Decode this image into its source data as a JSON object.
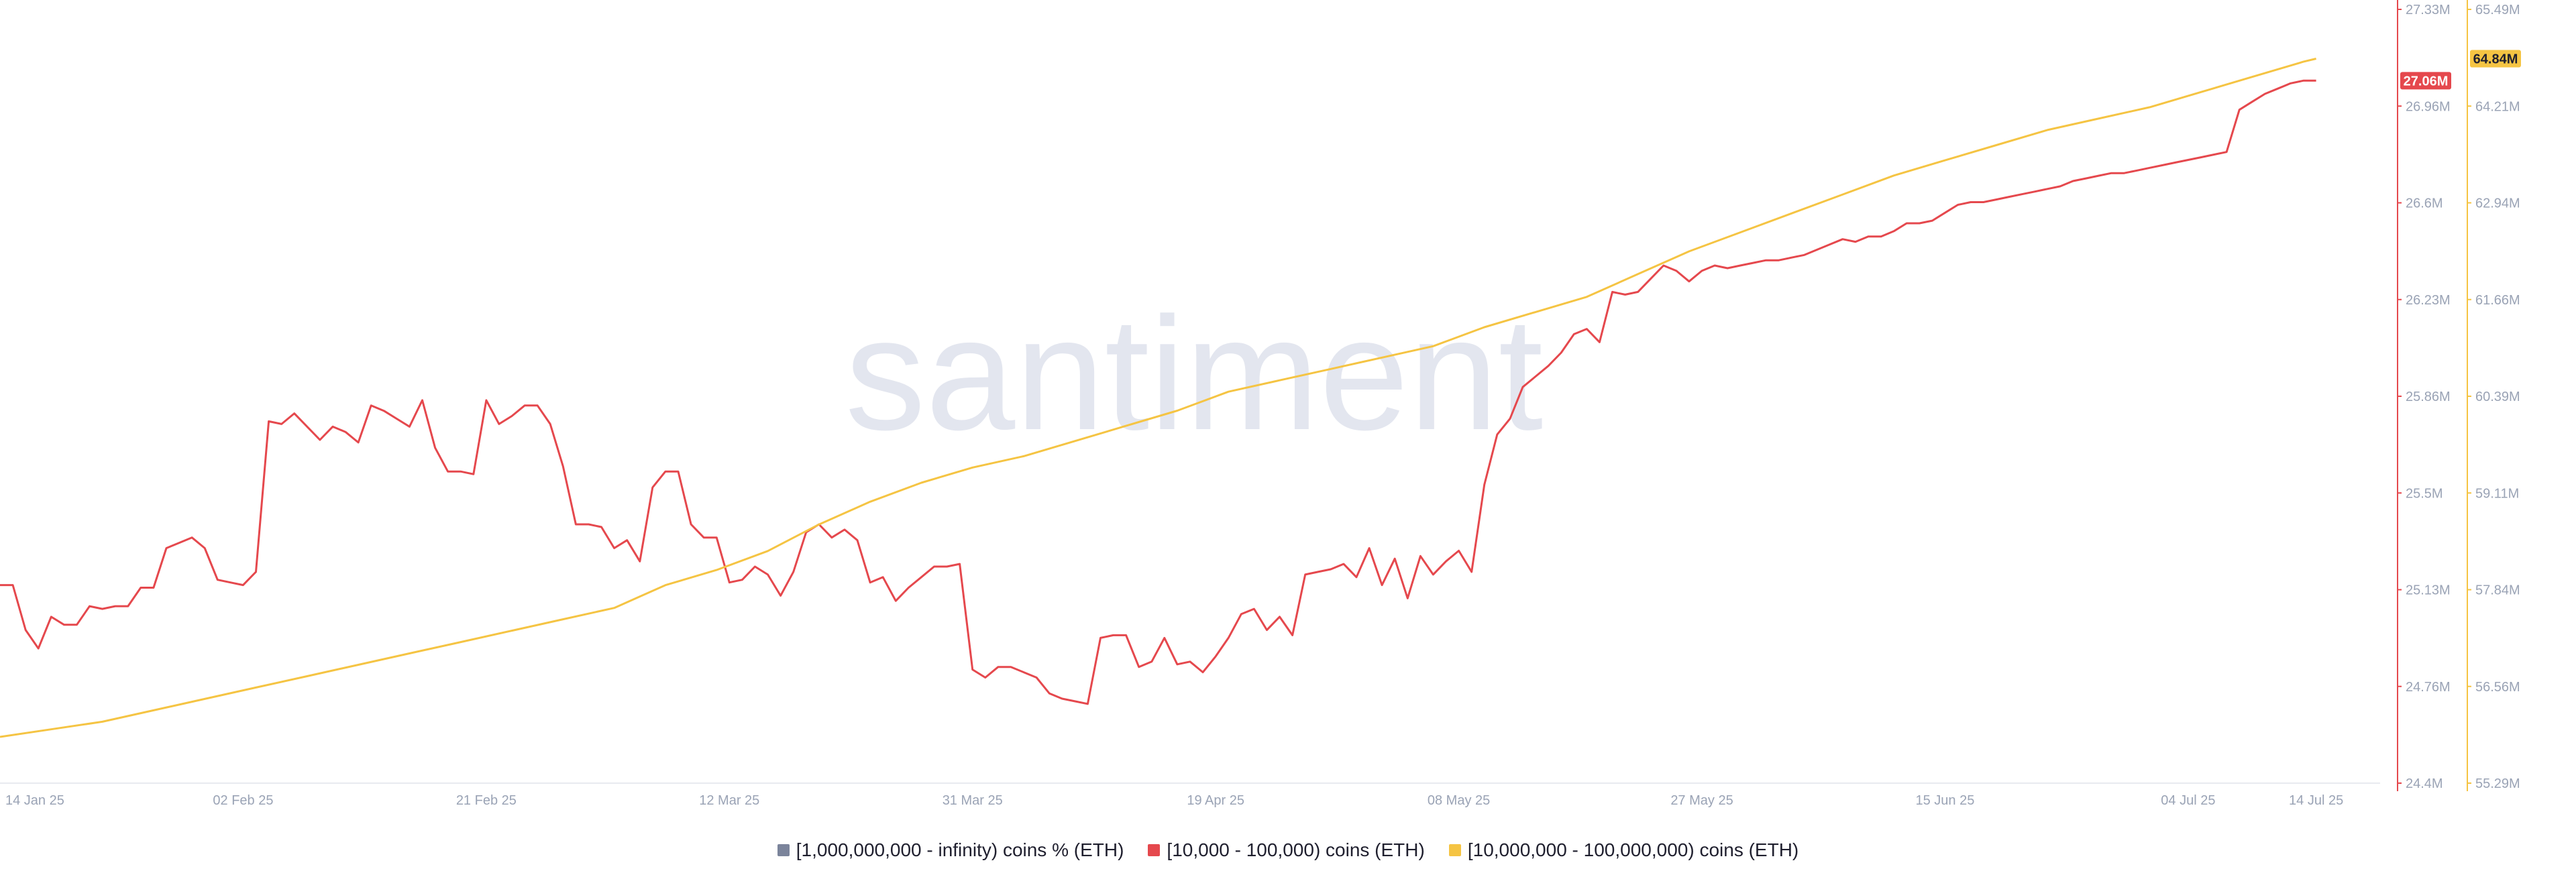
{
  "watermark": "santiment",
  "colors": {
    "red": "#e5484d",
    "yellow": "#f5c443",
    "gray": "#7b849b",
    "axis_text": "#9aa3b5",
    "watermark": "#e3e6ef"
  },
  "legend": [
    {
      "label": "[1,000,000,000 - infinity) coins % (ETH)",
      "color": "#7b849b"
    },
    {
      "label": "[10,000 - 100,000) coins (ETH)",
      "color": "#e5484d"
    },
    {
      "label": "[10,000,000 - 100,000,000) coins (ETH)",
      "color": "#f5c443"
    }
  ],
  "chart_data": {
    "type": "line",
    "title": "",
    "xlabel": "",
    "x_range": [
      "2025-01-14",
      "2025-07-19"
    ],
    "x_ticks": [
      {
        "date": "2025-01-14",
        "label": "14 Jan 25"
      },
      {
        "date": "2025-02-02",
        "label": "02 Feb 25"
      },
      {
        "date": "2025-02-21",
        "label": "21 Feb 25"
      },
      {
        "date": "2025-03-12",
        "label": "12 Mar 25"
      },
      {
        "date": "2025-03-31",
        "label": "31 Mar 25"
      },
      {
        "date": "2025-04-19",
        "label": "19 Apr 25"
      },
      {
        "date": "2025-05-08",
        "label": "08 May 25"
      },
      {
        "date": "2025-05-27",
        "label": "27 May 25"
      },
      {
        "date": "2025-06-15",
        "label": "15 Jun 25"
      },
      {
        "date": "2025-07-04",
        "label": "04 Jul 25"
      },
      {
        "date": "2025-07-14",
        "label": "14 Jul 25"
      }
    ],
    "axes": [
      {
        "id": "red",
        "range": [
          24.4,
          27.33
        ],
        "unit": "M",
        "tick_labels": [
          "27.33M",
          "26.96M",
          "26.6M",
          "26.23M",
          "25.86M",
          "25.5M",
          "25.13M",
          "24.76M",
          "24.4M"
        ],
        "current_label": "27.06M"
      },
      {
        "id": "yellow",
        "range": [
          55.29,
          65.49
        ],
        "unit": "M",
        "tick_labels": [
          "65.49M",
          "64.21M",
          "62.94M",
          "61.66M",
          "60.39M",
          "59.11M",
          "57.84M",
          "56.56M",
          "55.29M"
        ],
        "current_label": "64.84M"
      }
    ],
    "series": [
      {
        "name": "[10,000 - 100,000) coins (ETH)",
        "axis": "red",
        "color": "#e5484d",
        "points": [
          [
            "2025-01-14",
            25.15
          ],
          [
            "2025-01-15",
            25.15
          ],
          [
            "2025-01-16",
            24.98
          ],
          [
            "2025-01-17",
            24.91
          ],
          [
            "2025-01-18",
            25.03
          ],
          [
            "2025-01-19",
            25.0
          ],
          [
            "2025-01-20",
            25.0
          ],
          [
            "2025-01-21",
            25.07
          ],
          [
            "2025-01-22",
            25.06
          ],
          [
            "2025-01-23",
            25.07
          ],
          [
            "2025-01-24",
            25.07
          ],
          [
            "2025-01-25",
            25.14
          ],
          [
            "2025-01-26",
            25.14
          ],
          [
            "2025-01-27",
            25.29
          ],
          [
            "2025-01-28",
            25.31
          ],
          [
            "2025-01-29",
            25.33
          ],
          [
            "2025-01-30",
            25.29
          ],
          [
            "2025-01-31",
            25.17
          ],
          [
            "2025-02-01",
            25.16
          ],
          [
            "2025-02-02",
            25.15
          ],
          [
            "2025-02-03",
            25.2
          ],
          [
            "2025-02-04",
            25.77
          ],
          [
            "2025-02-05",
            25.76
          ],
          [
            "2025-02-06",
            25.8
          ],
          [
            "2025-02-07",
            25.75
          ],
          [
            "2025-02-08",
            25.7
          ],
          [
            "2025-02-09",
            25.75
          ],
          [
            "2025-02-10",
            25.73
          ],
          [
            "2025-02-11",
            25.69
          ],
          [
            "2025-02-12",
            25.83
          ],
          [
            "2025-02-13",
            25.81
          ],
          [
            "2025-02-14",
            25.78
          ],
          [
            "2025-02-15",
            25.75
          ],
          [
            "2025-02-16",
            25.85
          ],
          [
            "2025-02-17",
            25.67
          ],
          [
            "2025-02-18",
            25.58
          ],
          [
            "2025-02-19",
            25.58
          ],
          [
            "2025-02-20",
            25.57
          ],
          [
            "2025-02-21",
            25.85
          ],
          [
            "2025-02-22",
            25.76
          ],
          [
            "2025-02-23",
            25.79
          ],
          [
            "2025-02-24",
            25.83
          ],
          [
            "2025-02-25",
            25.83
          ],
          [
            "2025-02-26",
            25.76
          ],
          [
            "2025-02-27",
            25.6
          ],
          [
            "2025-02-28",
            25.38
          ],
          [
            "2025-03-01",
            25.38
          ],
          [
            "2025-03-02",
            25.37
          ],
          [
            "2025-03-03",
            25.29
          ],
          [
            "2025-03-04",
            25.32
          ],
          [
            "2025-03-05",
            25.24
          ],
          [
            "2025-03-06",
            25.52
          ],
          [
            "2025-03-07",
            25.58
          ],
          [
            "2025-03-08",
            25.58
          ],
          [
            "2025-03-09",
            25.38
          ],
          [
            "2025-03-10",
            25.33
          ],
          [
            "2025-03-11",
            25.33
          ],
          [
            "2025-03-12",
            25.16
          ],
          [
            "2025-03-13",
            25.17
          ],
          [
            "2025-03-14",
            25.22
          ],
          [
            "2025-03-15",
            25.19
          ],
          [
            "2025-03-16",
            25.11
          ],
          [
            "2025-03-17",
            25.2
          ],
          [
            "2025-03-18",
            25.35
          ],
          [
            "2025-03-19",
            25.38
          ],
          [
            "2025-03-20",
            25.33
          ],
          [
            "2025-03-21",
            25.36
          ],
          [
            "2025-03-22",
            25.32
          ],
          [
            "2025-03-23",
            25.16
          ],
          [
            "2025-03-24",
            25.18
          ],
          [
            "2025-03-25",
            25.09
          ],
          [
            "2025-03-26",
            25.14
          ],
          [
            "2025-03-27",
            25.18
          ],
          [
            "2025-03-28",
            25.22
          ],
          [
            "2025-03-29",
            25.22
          ],
          [
            "2025-03-30",
            25.23
          ],
          [
            "2025-03-31",
            24.83
          ],
          [
            "2025-04-01",
            24.8
          ],
          [
            "2025-04-02",
            24.84
          ],
          [
            "2025-04-03",
            24.84
          ],
          [
            "2025-04-04",
            24.82
          ],
          [
            "2025-04-05",
            24.8
          ],
          [
            "2025-04-06",
            24.74
          ],
          [
            "2025-04-07",
            24.72
          ],
          [
            "2025-04-08",
            24.71
          ],
          [
            "2025-04-09",
            24.7
          ],
          [
            "2025-04-10",
            24.95
          ],
          [
            "2025-04-11",
            24.96
          ],
          [
            "2025-04-12",
            24.96
          ],
          [
            "2025-04-13",
            24.84
          ],
          [
            "2025-04-14",
            24.86
          ],
          [
            "2025-04-15",
            24.95
          ],
          [
            "2025-04-16",
            24.85
          ],
          [
            "2025-04-17",
            24.86
          ],
          [
            "2025-04-18",
            24.82
          ],
          [
            "2025-04-19",
            24.88
          ],
          [
            "2025-04-20",
            24.95
          ],
          [
            "2025-04-21",
            25.04
          ],
          [
            "2025-04-22",
            25.06
          ],
          [
            "2025-04-23",
            24.98
          ],
          [
            "2025-04-24",
            25.03
          ],
          [
            "2025-04-25",
            24.96
          ],
          [
            "2025-04-26",
            25.19
          ],
          [
            "2025-04-27",
            25.2
          ],
          [
            "2025-04-28",
            25.21
          ],
          [
            "2025-04-29",
            25.23
          ],
          [
            "2025-04-30",
            25.18
          ],
          [
            "2025-05-01",
            25.29
          ],
          [
            "2025-05-02",
            25.15
          ],
          [
            "2025-05-03",
            25.25
          ],
          [
            "2025-05-04",
            25.1
          ],
          [
            "2025-05-05",
            25.26
          ],
          [
            "2025-05-06",
            25.19
          ],
          [
            "2025-05-07",
            25.24
          ],
          [
            "2025-05-08",
            25.28
          ],
          [
            "2025-05-09",
            25.2
          ],
          [
            "2025-05-10",
            25.53
          ],
          [
            "2025-05-11",
            25.72
          ],
          [
            "2025-05-12",
            25.78
          ],
          [
            "2025-05-13",
            25.9
          ],
          [
            "2025-05-14",
            25.94
          ],
          [
            "2025-05-15",
            25.98
          ],
          [
            "2025-05-16",
            26.03
          ],
          [
            "2025-05-17",
            26.1
          ],
          [
            "2025-05-18",
            26.12
          ],
          [
            "2025-05-19",
            26.07
          ],
          [
            "2025-05-20",
            26.26
          ],
          [
            "2025-05-21",
            26.25
          ],
          [
            "2025-05-22",
            26.26
          ],
          [
            "2025-05-23",
            26.31
          ],
          [
            "2025-05-24",
            26.36
          ],
          [
            "2025-05-25",
            26.34
          ],
          [
            "2025-05-26",
            26.3
          ],
          [
            "2025-05-27",
            26.34
          ],
          [
            "2025-05-28",
            26.36
          ],
          [
            "2025-05-29",
            26.35
          ],
          [
            "2025-05-30",
            26.36
          ],
          [
            "2025-05-31",
            26.37
          ],
          [
            "2025-06-01",
            26.38
          ],
          [
            "2025-06-02",
            26.38
          ],
          [
            "2025-06-03",
            26.39
          ],
          [
            "2025-06-04",
            26.4
          ],
          [
            "2025-06-05",
            26.42
          ],
          [
            "2025-06-06",
            26.44
          ],
          [
            "2025-06-07",
            26.46
          ],
          [
            "2025-06-08",
            26.45
          ],
          [
            "2025-06-09",
            26.47
          ],
          [
            "2025-06-10",
            26.47
          ],
          [
            "2025-06-11",
            26.49
          ],
          [
            "2025-06-12",
            26.52
          ],
          [
            "2025-06-13",
            26.52
          ],
          [
            "2025-06-14",
            26.53
          ],
          [
            "2025-06-15",
            26.56
          ],
          [
            "2025-06-16",
            26.59
          ],
          [
            "2025-06-17",
            26.6
          ],
          [
            "2025-06-18",
            26.6
          ],
          [
            "2025-06-19",
            26.61
          ],
          [
            "2025-06-20",
            26.62
          ],
          [
            "2025-06-21",
            26.63
          ],
          [
            "2025-06-22",
            26.64
          ],
          [
            "2025-06-23",
            26.65
          ],
          [
            "2025-06-24",
            26.66
          ],
          [
            "2025-06-25",
            26.68
          ],
          [
            "2025-06-26",
            26.69
          ],
          [
            "2025-06-27",
            26.7
          ],
          [
            "2025-06-28",
            26.71
          ],
          [
            "2025-06-29",
            26.71
          ],
          [
            "2025-06-30",
            26.72
          ],
          [
            "2025-07-01",
            26.73
          ],
          [
            "2025-07-02",
            26.74
          ],
          [
            "2025-07-03",
            26.75
          ],
          [
            "2025-07-04",
            26.76
          ],
          [
            "2025-07-05",
            26.77
          ],
          [
            "2025-07-06",
            26.78
          ],
          [
            "2025-07-07",
            26.79
          ],
          [
            "2025-07-08",
            26.95
          ],
          [
            "2025-07-09",
            26.98
          ],
          [
            "2025-07-10",
            27.01
          ],
          [
            "2025-07-11",
            27.03
          ],
          [
            "2025-07-12",
            27.05
          ],
          [
            "2025-07-13",
            27.06
          ],
          [
            "2025-07-14",
            27.06
          ]
        ]
      },
      {
        "name": "[10,000,000 - 100,000,000) coins (ETH)",
        "axis": "yellow",
        "color": "#f5c443",
        "points": [
          [
            "2025-01-14",
            55.9
          ],
          [
            "2025-01-18",
            56.0
          ],
          [
            "2025-01-22",
            56.1
          ],
          [
            "2025-01-26",
            56.25
          ],
          [
            "2025-01-30",
            56.4
          ],
          [
            "2025-02-03",
            56.55
          ],
          [
            "2025-02-07",
            56.7
          ],
          [
            "2025-02-11",
            56.85
          ],
          [
            "2025-02-15",
            57.0
          ],
          [
            "2025-02-19",
            57.15
          ],
          [
            "2025-02-23",
            57.3
          ],
          [
            "2025-02-27",
            57.45
          ],
          [
            "2025-03-03",
            57.6
          ],
          [
            "2025-03-07",
            57.9
          ],
          [
            "2025-03-11",
            58.1
          ],
          [
            "2025-03-15",
            58.35
          ],
          [
            "2025-03-19",
            58.7
          ],
          [
            "2025-03-23",
            59.0
          ],
          [
            "2025-03-27",
            59.25
          ],
          [
            "2025-03-31",
            59.45
          ],
          [
            "2025-04-04",
            59.6
          ],
          [
            "2025-04-08",
            59.8
          ],
          [
            "2025-04-12",
            60.0
          ],
          [
            "2025-04-16",
            60.2
          ],
          [
            "2025-04-20",
            60.45
          ],
          [
            "2025-04-24",
            60.6
          ],
          [
            "2025-04-28",
            60.75
          ],
          [
            "2025-05-02",
            60.9
          ],
          [
            "2025-05-06",
            61.05
          ],
          [
            "2025-05-10",
            61.3
          ],
          [
            "2025-05-14",
            61.5
          ],
          [
            "2025-05-18",
            61.7
          ],
          [
            "2025-05-22",
            62.0
          ],
          [
            "2025-05-26",
            62.3
          ],
          [
            "2025-05-30",
            62.55
          ],
          [
            "2025-06-03",
            62.8
          ],
          [
            "2025-06-07",
            63.05
          ],
          [
            "2025-06-11",
            63.3
          ],
          [
            "2025-06-15",
            63.5
          ],
          [
            "2025-06-19",
            63.7
          ],
          [
            "2025-06-23",
            63.9
          ],
          [
            "2025-06-27",
            64.05
          ],
          [
            "2025-07-01",
            64.2
          ],
          [
            "2025-07-05",
            64.4
          ],
          [
            "2025-07-09",
            64.6
          ],
          [
            "2025-07-13",
            64.8
          ],
          [
            "2025-07-14",
            64.84
          ]
        ]
      }
    ],
    "grid": false,
    "legend_position": "bottom-center"
  }
}
